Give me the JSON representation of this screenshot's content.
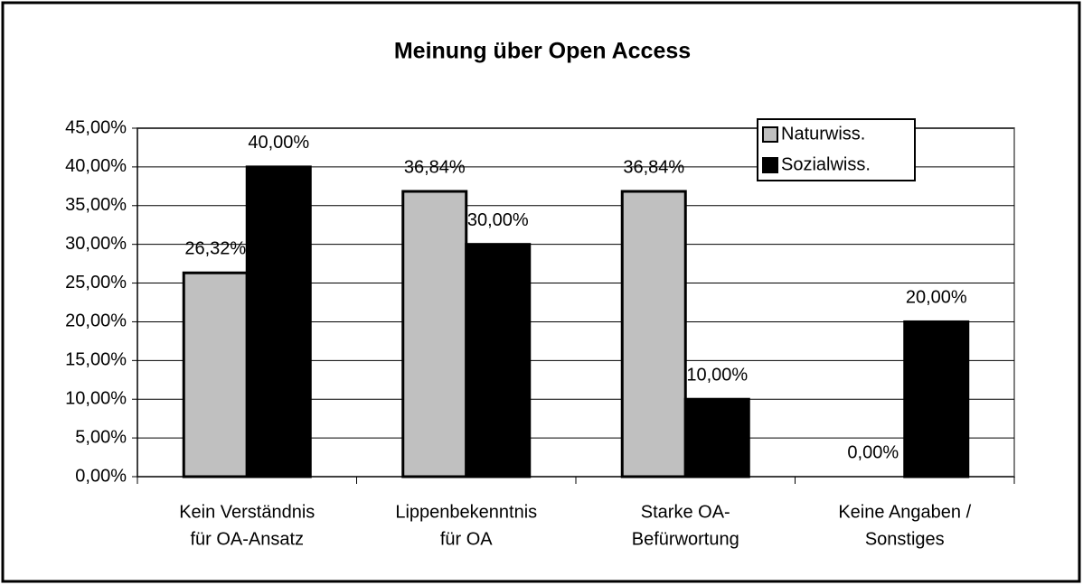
{
  "chart_data": {
    "type": "bar",
    "title": "Meinung über Open Access",
    "categories": [
      [
        "Kein Verständnis",
        "für OA-Ansatz"
      ],
      [
        "Lippenbekenntnis",
        "für OA"
      ],
      [
        "Starke OA-",
        "Befürwortung"
      ],
      [
        "Keine Angaben /",
        "Sonstiges"
      ]
    ],
    "series": [
      {
        "name": "Naturwiss.",
        "color": "#c0c0c0",
        "values": [
          26.32,
          36.84,
          36.84,
          0
        ],
        "value_labels": [
          "26,32%",
          "36,84%",
          "36,84%",
          "0,00%"
        ]
      },
      {
        "name": "Sozialwiss.",
        "color": "#000000",
        "values": [
          40,
          30,
          10,
          20
        ],
        "value_labels": [
          "40,00%",
          "30,00%",
          "10,00%",
          "20,00%"
        ]
      }
    ],
    "ylim": [
      0,
      45
    ],
    "yticks": [
      {
        "value": 0,
        "label": "0,00%"
      },
      {
        "value": 5,
        "label": "5,00%"
      },
      {
        "value": 10,
        "label": "10,00%"
      },
      {
        "value": 15,
        "label": "15,00%"
      },
      {
        "value": 20,
        "label": "20,00%"
      },
      {
        "value": 25,
        "label": "25,00%"
      },
      {
        "value": 30,
        "label": "30,00%"
      },
      {
        "value": 35,
        "label": "35,00%"
      },
      {
        "value": 40,
        "label": "40,00%"
      },
      {
        "value": 45,
        "label": "45,00%"
      }
    ],
    "grid": true,
    "legend": "upper right"
  }
}
